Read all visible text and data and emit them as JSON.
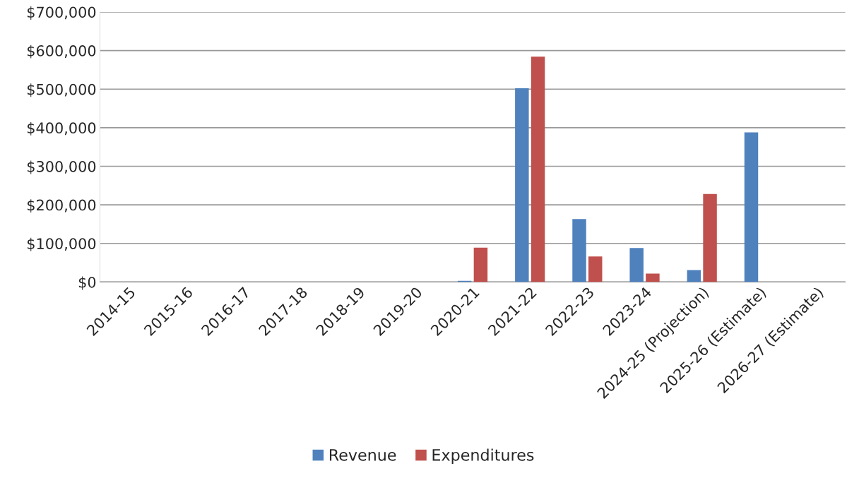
{
  "chart_data": {
    "type": "bar",
    "categories": [
      "2014-15",
      "2015-16",
      "2016-17",
      "2017-18",
      "2018-19",
      "2019-20",
      "2020-21",
      "2021-22",
      "2022-23",
      "2023-24",
      "2024-25 (Projection)",
      "2025-26 (Estimate)",
      "2026-27 (Estimate)"
    ],
    "series": [
      {
        "name": "Revenue",
        "color": "#4f81bd",
        "values": [
          null,
          null,
          null,
          null,
          null,
          null,
          3000,
          502000,
          163000,
          88000,
          31000,
          388000,
          null
        ]
      },
      {
        "name": "Expenditures",
        "color": "#c0504d",
        "values": [
          null,
          null,
          null,
          null,
          null,
          null,
          89000,
          584000,
          66000,
          22000,
          228000,
          null,
          null
        ]
      }
    ],
    "ylim": [
      0,
      700000
    ],
    "yticks": [
      {
        "value": 0,
        "label": "$0"
      },
      {
        "value": 100000,
        "label": "$100,000"
      },
      {
        "value": 200000,
        "label": "$200,000"
      },
      {
        "value": 300000,
        "label": "$300,000"
      },
      {
        "value": 400000,
        "label": "$400,000"
      },
      {
        "value": 500000,
        "label": "$500,000"
      },
      {
        "value": 600000,
        "label": "$600,000"
      },
      {
        "value": 700000,
        "label": "$700,000"
      }
    ],
    "grid": "y",
    "legend": "bottom"
  }
}
